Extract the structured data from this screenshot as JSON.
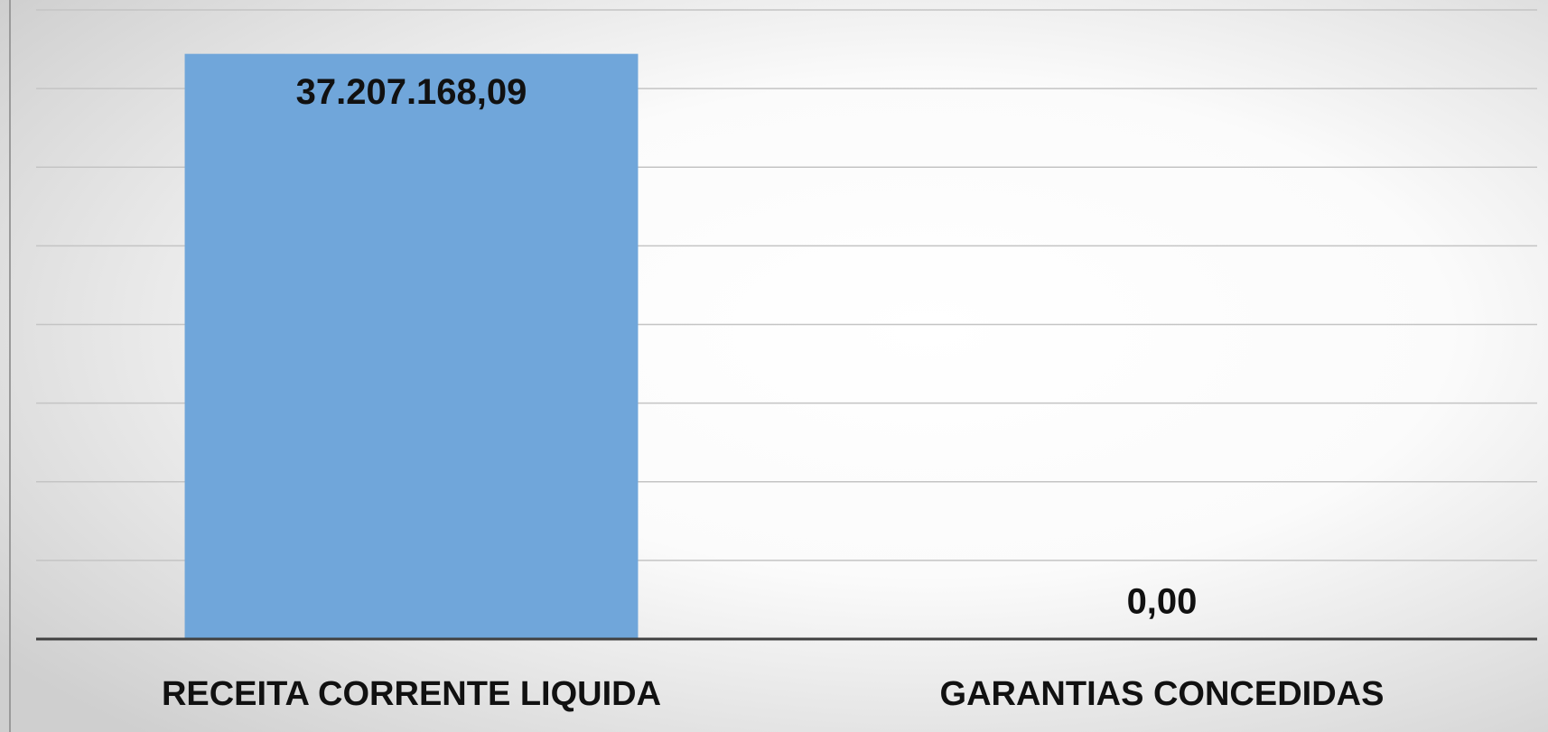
{
  "chart_data": {
    "type": "bar",
    "categories": [
      "RECEITA CORRENTE LIQUIDA",
      "GARANTIAS CONCEDIDAS"
    ],
    "values": [
      37207168.09,
      0
    ],
    "value_labels": [
      "37.207.168,09",
      "0,00"
    ],
    "color": "#70a6da",
    "ylim": [
      0,
      40000000
    ],
    "yticks": [
      0,
      5000000,
      10000000,
      15000000,
      20000000,
      25000000,
      30000000,
      35000000,
      40000000
    ],
    "grid": true
  }
}
